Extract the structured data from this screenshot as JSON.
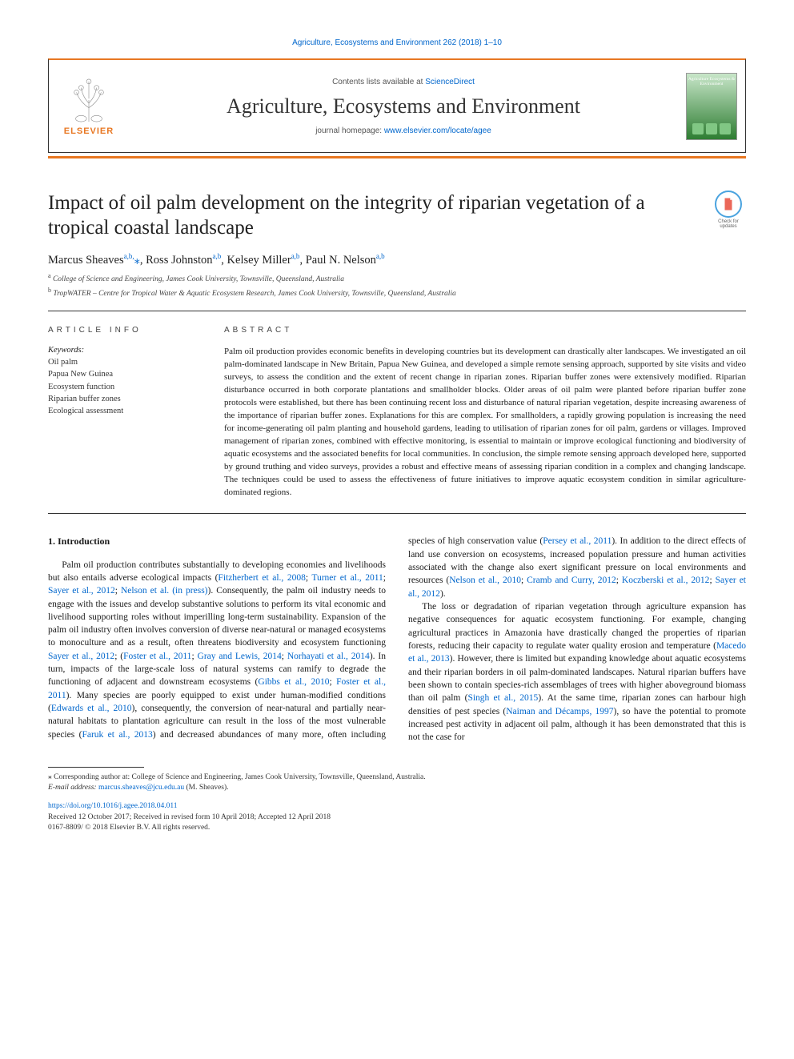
{
  "colors": {
    "accent_orange": "#e87722",
    "link_blue": "#0066cc",
    "text": "#1a1a1a",
    "rule": "#333333"
  },
  "top_citation": "Agriculture, Ecosystems and Environment 262 (2018) 1–10",
  "header": {
    "contents_prefix": "Contents lists available at ",
    "contents_link": "ScienceDirect",
    "journal": "Agriculture, Ecosystems and Environment",
    "homepage_prefix": "journal homepage: ",
    "homepage_link": "www.elsevier.com/locate/agee",
    "publisher": "ELSEVIER",
    "cover_title": "Agriculture Ecosystems & Environment"
  },
  "updates_badge": "Check for updates",
  "title": "Impact of oil palm development on the integrity of riparian vegetation of a tropical coastal landscape",
  "authors_html": "Marcus Sheaves<sup>a,b,</sup><span class='star'>⁎</span>, Ross Johnston<sup>a,b</sup>, Kelsey Miller<sup>a,b</sup>, Paul N. Nelson<sup>a,b</sup>",
  "affiliations": [
    {
      "sup": "a",
      "text": "College of Science and Engineering, James Cook University, Townsville, Queensland, Australia"
    },
    {
      "sup": "b",
      "text": "TropWATER – Centre for Tropical Water & Aquatic Ecosystem Research, James Cook University, Townsville, Queensland, Australia"
    }
  ],
  "article_info_head": "ARTICLE INFO",
  "abstract_head": "ABSTRACT",
  "keywords_label": "Keywords:",
  "keywords": [
    "Oil palm",
    "Papua New Guinea",
    "Ecosystem function",
    "Riparian buffer zones",
    "Ecological assessment"
  ],
  "abstract": "Palm oil production provides economic benefits in developing countries but its development can drastically alter landscapes. We investigated an oil palm-dominated landscape in New Britain, Papua New Guinea, and developed a simple remote sensing approach, supported by site visits and video surveys, to assess the condition and the extent of recent change in riparian zones. Riparian buffer zones were extensively modified. Riparian disturbance occurred in both corporate plantations and smallholder blocks. Older areas of oil palm were planted before riparian buffer zone protocols were established, but there has been continuing recent loss and disturbance of natural riparian vegetation, despite increasing awareness of the importance of riparian buffer zones. Explanations for this are complex. For smallholders, a rapidly growing population is increasing the need for income-generating oil palm planting and household gardens, leading to utilisation of riparian zones for oil palm, gardens or villages. Improved management of riparian zones, combined with effective monitoring, is essential to maintain or improve ecological functioning and biodiversity of aquatic ecosystems and the associated benefits for local communities. In conclusion, the simple remote sensing approach developed here, supported by ground truthing and video surveys, provides a robust and effective means of assessing riparian condition in a complex and changing landscape. The techniques could be used to assess the effectiveness of future initiatives to improve aquatic ecosystem condition in similar agriculture-dominated regions.",
  "intro_head": "1. Introduction",
  "intro_paragraphs": [
    "Palm oil production contributes substantially to developing economies and livelihoods but also entails adverse ecological impacts (<span class='cite'>Fitzherbert et al., 2008</span>; <span class='cite'>Turner et al., 2011</span>; <span class='cite'>Sayer et al., 2012</span>; <span class='cite'>Nelson et al. (in press)</span>). Consequently, the palm oil industry needs to engage with the issues and develop substantive solutions to perform its vital economic and livelihood supporting roles without imperilling long-term sustainability. Expansion of the palm oil industry often involves conversion of diverse near-natural or managed ecosystems to monoculture and as a result, often threatens biodiversity and ecosystem functioning <span class='cite'>Sayer et al., 2012</span>; (<span class='cite'>Foster et al., 2011</span>; <span class='cite'>Gray and Lewis, 2014</span>; <span class='cite'>Norhayati et al., 2014</span>). In turn, impacts of the large-scale loss of natural systems can ramify to degrade the functioning of adjacent and downstream ecosystems (<span class='cite'>Gibbs et al., 2010</span>; <span class='cite'>Foster et al., 2011</span>). Many species are poorly equipped to exist under human-modified conditions (<span class='cite'>Edwards et al., 2010</span>), consequently, the conversion of near-natural and partially near-natural habitats to plantation agriculture can result in the loss of the most vulnerable species (<span class='cite'>Faruk et al., 2013</span>) and decreased abundances of many more, often including species of high conservation value (<span class='cite'>Persey et al., 2011</span>). In addition to the direct effects of land use conversion on ecosystems, increased population pressure and human activities associated with the change also exert significant pressure on local environments and resources (<span class='cite'>Nelson et al., 2010</span>; <span class='cite'>Cramb and Curry, 2012</span>; <span class='cite'>Koczberski et al., 2012</span>; <span class='cite'>Sayer et al., 2012</span>).",
    "The loss or degradation of riparian vegetation through agriculture expansion has negative consequences for aquatic ecosystem functioning. For example, changing agricultural practices in Amazonia have drastically changed the properties of riparian forests, reducing their capacity to regulate water quality erosion and temperature (<span class='cite'>Macedo et al., 2013</span>). However, there is limited but expanding knowledge about aquatic ecosystems and their riparian borders in oil palm-dominated landscapes. Natural riparian buffers have been shown to contain species-rich assemblages of trees with higher aboveground biomass than oil palm (<span class='cite'>Singh et al., 2015</span>). At the same time, riparian zones can harbour high densities of pest species (<span class='cite'>Naiman and Décamps, 1997</span>), so have the potential to promote increased pest activity in adjacent oil palm, although it has been demonstrated that this is not the case for"
  ],
  "corresponding": {
    "note": "⁎ Corresponding author at: College of Science and Engineering, James Cook University, Townsville, Queensland, Australia.",
    "email_label": "E-mail address: ",
    "email": "marcus.sheaves@jcu.edu.au",
    "email_suffix": " (M. Sheaves)."
  },
  "doi": {
    "link": "https://doi.org/10.1016/j.agee.2018.04.011",
    "received": "Received 12 October 2017; Received in revised form 10 April 2018; Accepted 12 April 2018",
    "copyright": "0167-8809/ © 2018 Elsevier B.V. All rights reserved."
  }
}
